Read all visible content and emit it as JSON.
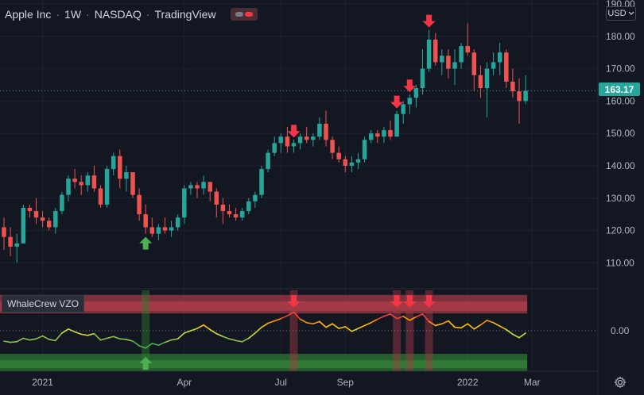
{
  "header": {
    "symbol": "Apple Inc",
    "interval": "1W",
    "exchange": "NASDAQ",
    "source": "TradingView"
  },
  "currency_selector": {
    "label": "USD",
    "icon": "chevron-down-icon"
  },
  "indicator": {
    "label": "WhaleCrew VZO",
    "zero_label": "0.00"
  },
  "last_price": {
    "label": "163.17",
    "value": 163.17,
    "color": "#26a69a"
  },
  "price_axis": {
    "ticks": [
      "110.00",
      "120.00",
      "130.00",
      "140.00",
      "150.00",
      "160.00",
      "170.00",
      "180.00",
      "190.00"
    ],
    "tick_values": [
      110,
      120,
      130,
      140,
      150,
      160,
      170,
      180,
      190
    ]
  },
  "time_axis": {
    "labels": [
      "2021",
      "Apr",
      "Jul",
      "Sep",
      "2022",
      "Mar"
    ]
  },
  "colors": {
    "background": "#131722",
    "up": "#26a69a",
    "down": "#ef5350",
    "grid": "#1e222d",
    "text": "#b2b5be",
    "overbought_zone": "#a23a44",
    "oversold_zone": "#2e7d32",
    "buy_arrow": "#4caf50",
    "sell_arrow": "#f23645"
  },
  "chart_data": {
    "type": "candlestick",
    "ylim": [
      102,
      190
    ],
    "candles": [
      [
        121,
        124,
        114,
        118
      ],
      [
        118,
        121,
        112,
        115
      ],
      [
        115,
        119,
        110,
        116
      ],
      [
        116,
        128,
        116,
        127
      ],
      [
        127,
        128,
        124,
        126
      ],
      [
        126,
        130,
        122,
        124
      ],
      [
        124,
        126,
        121,
        123
      ],
      [
        123,
        124,
        120,
        121
      ],
      [
        121,
        127,
        119,
        126
      ],
      [
        126,
        132,
        125,
        131
      ],
      [
        131,
        137,
        129,
        136
      ],
      [
        136,
        139,
        133,
        135
      ],
      [
        135,
        137,
        131,
        134
      ],
      [
        134,
        138,
        132,
        137
      ],
      [
        137,
        140,
        132,
        133
      ],
      [
        133,
        134,
        127,
        128
      ],
      [
        128,
        140,
        127,
        139
      ],
      [
        139,
        144,
        137,
        143
      ],
      [
        143,
        145,
        133,
        136
      ],
      [
        136,
        140,
        132,
        138
      ],
      [
        138,
        138,
        130,
        131
      ],
      [
        131,
        133,
        123,
        125
      ],
      [
        125,
        128,
        119,
        121
      ],
      [
        121,
        124,
        118,
        119
      ],
      [
        119,
        122,
        117,
        121
      ],
      [
        121,
        124,
        119,
        120
      ],
      [
        120,
        123,
        118,
        121
      ],
      [
        121,
        125,
        120,
        124
      ],
      [
        124,
        134,
        122,
        133
      ],
      [
        133,
        135,
        131,
        134
      ],
      [
        134,
        135,
        130,
        133
      ],
      [
        133,
        137,
        131,
        135
      ],
      [
        135,
        135,
        129,
        132
      ],
      [
        132,
        133,
        124,
        128
      ],
      [
        128,
        130,
        122,
        126
      ],
      [
        126,
        128,
        124,
        125
      ],
      [
        125,
        127,
        123,
        124
      ],
      [
        124,
        127,
        123,
        126
      ],
      [
        126,
        130,
        125,
        129
      ],
      [
        129,
        132,
        127,
        131
      ],
      [
        131,
        140,
        130,
        139
      ],
      [
        139,
        145,
        138,
        144
      ],
      [
        144,
        149,
        143,
        147
      ],
      [
        147,
        150,
        144,
        149
      ],
      [
        149,
        152,
        144,
        146
      ],
      [
        146,
        148,
        144,
        147
      ],
      [
        147,
        150,
        145,
        149
      ],
      [
        149,
        152,
        147,
        148
      ],
      [
        148,
        150,
        146,
        149
      ],
      [
        149,
        155,
        148,
        153
      ],
      [
        153,
        157,
        146,
        148
      ],
      [
        148,
        149,
        142,
        144
      ],
      [
        144,
        146,
        141,
        142
      ],
      [
        142,
        143,
        138,
        140
      ],
      [
        140,
        143,
        138,
        141
      ],
      [
        141,
        144,
        139,
        142
      ],
      [
        142,
        149,
        141,
        148
      ],
      [
        148,
        151,
        147,
        150
      ],
      [
        150,
        151,
        147,
        149
      ],
      [
        149,
        152,
        147,
        151
      ],
      [
        151,
        154,
        148,
        149
      ],
      [
        149,
        157,
        149,
        156
      ],
      [
        156,
        160,
        153,
        159
      ],
      [
        159,
        162,
        156,
        161
      ],
      [
        161,
        165,
        158,
        164
      ],
      [
        164,
        176,
        162,
        170
      ],
      [
        170,
        182,
        169,
        179
      ],
      [
        179,
        181,
        171,
        172
      ],
      [
        172,
        176,
        168,
        174
      ],
      [
        174,
        176,
        167,
        170
      ],
      [
        170,
        176,
        165,
        172
      ],
      [
        172,
        178,
        170,
        177
      ],
      [
        177,
        184,
        174,
        175
      ],
      [
        175,
        176,
        163,
        168
      ],
      [
        168,
        171,
        161,
        164
      ],
      [
        164,
        172,
        155,
        170
      ],
      [
        170,
        175,
        168,
        172
      ],
      [
        172,
        178,
        168,
        175
      ],
      [
        175,
        176,
        164,
        166
      ],
      [
        166,
        170,
        161,
        163
      ],
      [
        163,
        167,
        153,
        160
      ],
      [
        160,
        168,
        159,
        163.17
      ]
    ],
    "vzo": [
      -0.8,
      -1.0,
      -0.9,
      -0.3,
      -0.6,
      -0.4,
      0.1,
      -0.5,
      -0.7,
      0.6,
      1.3,
      0.8,
      0.4,
      0.2,
      0.5,
      -0.6,
      -0.3,
      0.0,
      -0.4,
      -0.5,
      -0.8,
      -1.6,
      -2.0,
      -1.2,
      -1.5,
      -1.0,
      -0.6,
      -0.4,
      0.6,
      1.0,
      1.4,
      2.0,
      1.2,
      0.5,
      0.0,
      -0.4,
      -0.7,
      -0.9,
      -0.3,
      0.6,
      1.6,
      2.3,
      2.7,
      3.1,
      3.6,
      4.2,
      3.0,
      2.4,
      2.2,
      2.6,
      1.6,
      2.2,
      1.4,
      1.7,
      0.9,
      1.4,
      1.9,
      2.4,
      3.0,
      3.5,
      3.9,
      3.1,
      3.5,
      2.8,
      3.4,
      3.9,
      2.6,
      1.9,
      2.2,
      2.7,
      1.6,
      1.5,
      2.2,
      1.3,
      2.0,
      2.8,
      2.4,
      1.8,
      1.2,
      0.4,
      -0.2,
      0.6
    ],
    "vzo_range": [
      -6,
      8
    ],
    "zones": {
      "overbought": [
        4.0,
        7.2
      ],
      "oversold": [
        -6.0,
        -3.0
      ]
    },
    "signals": [
      {
        "type": "buy",
        "bar": 22
      },
      {
        "type": "sell",
        "bar": 45
      },
      {
        "type": "sell",
        "bar": 61
      },
      {
        "type": "sell",
        "bar": 63
      },
      {
        "type": "sell",
        "bar": 66
      }
    ],
    "time_label_bars": [
      6,
      28,
      43,
      53,
      72,
      82
    ],
    "grid": true,
    "scale": "linear"
  }
}
